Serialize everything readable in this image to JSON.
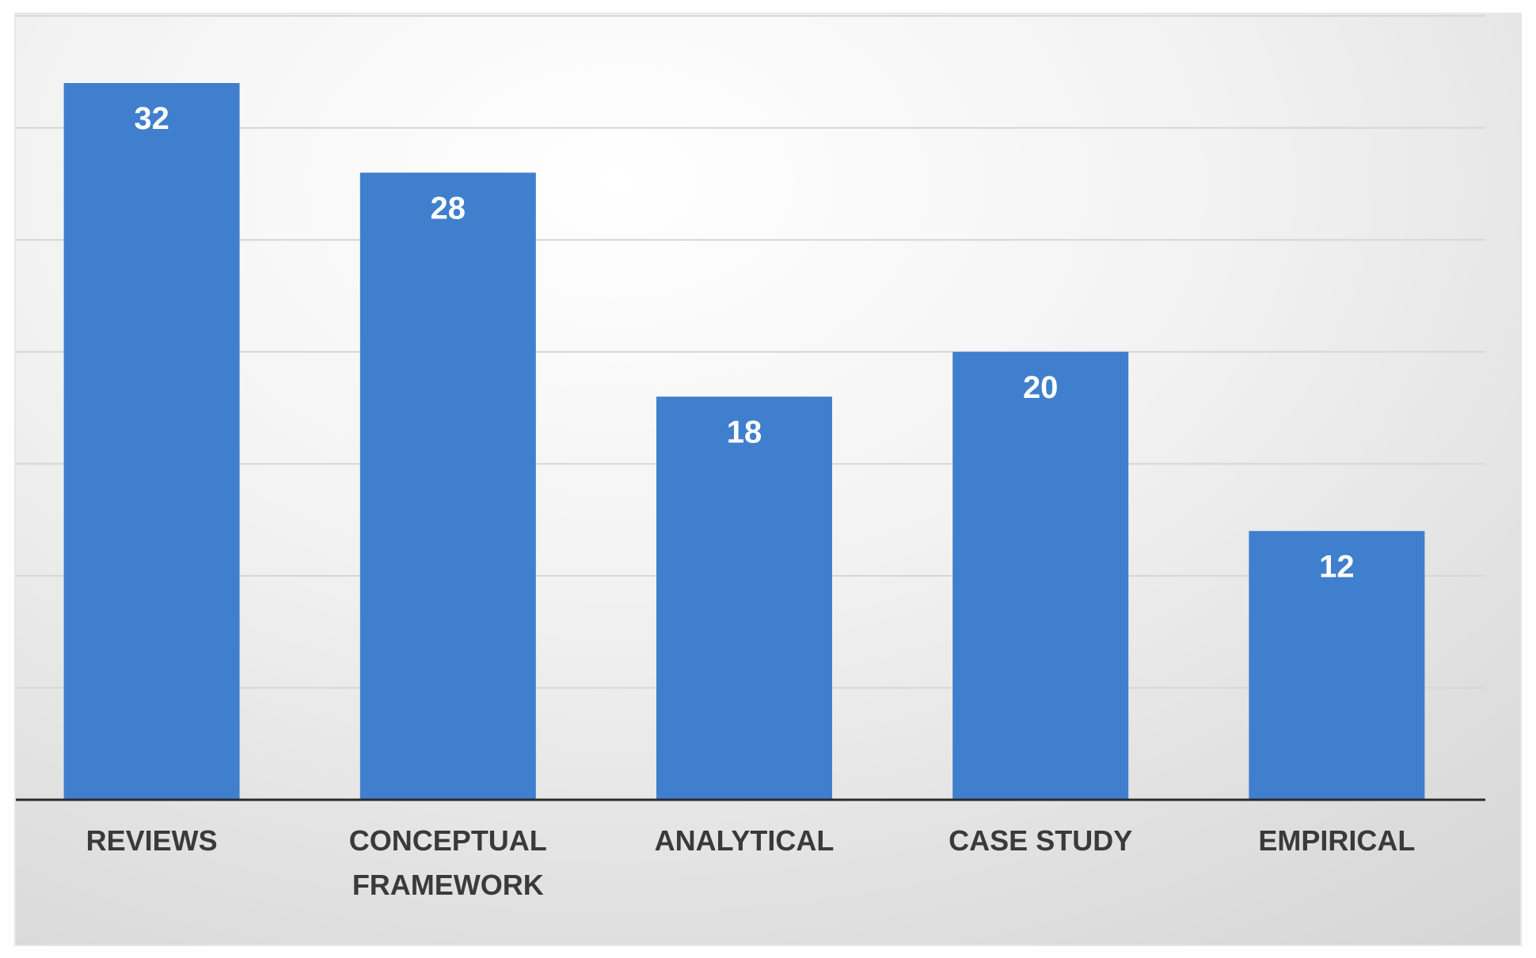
{
  "chart_data": {
    "type": "bar",
    "categories": [
      [
        "REVIEWS"
      ],
      [
        "CONCEPTUAL",
        "FRAMEWORK"
      ],
      [
        "ANALYTICAL"
      ],
      [
        "CASE STUDY"
      ],
      [
        "EMPIRICAL"
      ]
    ],
    "values": [
      32,
      28,
      18,
      20,
      12
    ],
    "data_labels": [
      "32",
      "28",
      "18",
      "20",
      "12"
    ],
    "ylim": [
      0,
      35
    ],
    "gridline_step": 5,
    "grid": true,
    "bar_color": "#3f7fcd",
    "axis_color": "#2b2b2b",
    "label_color": "#3a3a3a"
  }
}
